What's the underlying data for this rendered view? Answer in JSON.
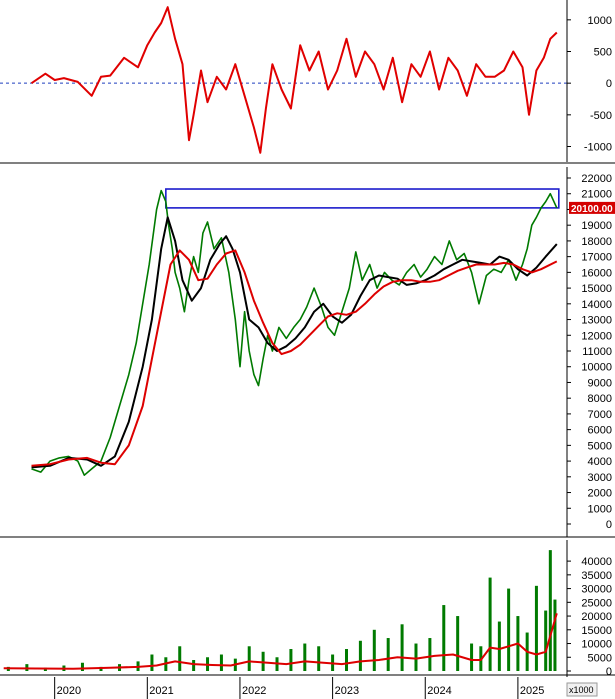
{
  "chart_data": [
    {
      "type": "line",
      "panel": "oscillator",
      "yticks": [
        -1000,
        -500,
        0,
        500,
        1000
      ],
      "ylim": [
        -1150,
        1250
      ],
      "zero_line": {
        "color": "#1f3fbf",
        "style": "dashed"
      },
      "series": [
        {
          "color": "#e00000",
          "x": [
            2019.75,
            2019.9,
            2020.0,
            2020.1,
            2020.25,
            2020.4,
            2020.5,
            2020.6,
            2020.75,
            2020.9,
            2021.0,
            2021.08,
            2021.15,
            2021.22,
            2021.3,
            2021.38,
            2021.45,
            2021.5,
            2021.58,
            2021.65,
            2021.75,
            2021.85,
            2021.95,
            2022.05,
            2022.15,
            2022.22,
            2022.28,
            2022.35,
            2022.45,
            2022.55,
            2022.65,
            2022.75,
            2022.85,
            2022.95,
            2023.05,
            2023.15,
            2023.25,
            2023.35,
            2023.45,
            2023.55,
            2023.65,
            2023.75,
            2023.85,
            2023.95,
            2024.05,
            2024.15,
            2024.25,
            2024.35,
            2024.45,
            2024.55,
            2024.65,
            2024.75,
            2024.85,
            2024.95,
            2025.05,
            2025.12,
            2025.2,
            2025.28,
            2025.35,
            2025.42
          ],
          "y": [
            0,
            150,
            50,
            80,
            20,
            -200,
            100,
            120,
            400,
            250,
            600,
            800,
            950,
            1200,
            700,
            300,
            -900,
            -500,
            200,
            -300,
            100,
            -100,
            300,
            -200,
            -700,
            -1100,
            -400,
            300,
            -100,
            -400,
            600,
            200,
            500,
            -100,
            200,
            700,
            100,
            500,
            300,
            -100,
            400,
            -300,
            300,
            100,
            500,
            -100,
            400,
            200,
            -200,
            300,
            100,
            100,
            200,
            500,
            250,
            -500,
            200,
            400,
            700,
            800
          ]
        }
      ]
    },
    {
      "type": "line",
      "panel": "price",
      "yticks": [
        0,
        1000,
        2000,
        3000,
        4000,
        5000,
        6000,
        7000,
        8000,
        9000,
        10000,
        11000,
        12000,
        13000,
        14000,
        15000,
        16000,
        17000,
        18000,
        19000,
        20000,
        21000,
        22000
      ],
      "ylim": [
        -700,
        22700
      ],
      "last_price": "20100.00",
      "resistance_box": {
        "y_low": 20100,
        "y_high": 21300,
        "x_start": 2021.2,
        "x_end": 2025.42,
        "color": "#1c1ccc"
      },
      "series": [
        {
          "color": "#007a00",
          "x": [
            2019.75,
            2019.85,
            2019.95,
            2020.05,
            2020.15,
            2020.25,
            2020.32,
            2020.4,
            2020.5,
            2020.6,
            2020.7,
            2020.8,
            2020.88,
            2020.95,
            2021.02,
            2021.1,
            2021.15,
            2021.2,
            2021.23,
            2021.27,
            2021.3,
            2021.35,
            2021.4,
            2021.45,
            2021.5,
            2021.55,
            2021.6,
            2021.65,
            2021.72,
            2021.8,
            2021.88,
            2021.95,
            2022.0,
            2022.05,
            2022.1,
            2022.15,
            2022.2,
            2022.25,
            2022.3,
            2022.35,
            2022.42,
            2022.5,
            2022.58,
            2022.65,
            2022.72,
            2022.8,
            2022.88,
            2022.95,
            2023.02,
            2023.1,
            2023.18,
            2023.25,
            2023.32,
            2023.4,
            2023.48,
            2023.56,
            2023.64,
            2023.72,
            2023.8,
            2023.88,
            2023.95,
            2024.02,
            2024.1,
            2024.18,
            2024.26,
            2024.34,
            2024.42,
            2024.5,
            2024.58,
            2024.66,
            2024.74,
            2024.82,
            2024.9,
            2024.98,
            2025.05,
            2025.1,
            2025.15,
            2025.2,
            2025.25,
            2025.3,
            2025.35,
            2025.42
          ],
          "y": [
            3500,
            3300,
            4000,
            4200,
            4300,
            4000,
            3100,
            3500,
            4000,
            5500,
            7500,
            9500,
            11500,
            14000,
            16500,
            20000,
            21200,
            20500,
            19000,
            17500,
            16000,
            15000,
            13500,
            15500,
            17000,
            16000,
            18500,
            19200,
            17500,
            18200,
            16000,
            13000,
            10000,
            13500,
            11000,
            9500,
            8800,
            10500,
            12000,
            11000,
            12500,
            11800,
            12500,
            13000,
            13800,
            15000,
            13800,
            12500,
            12000,
            13500,
            15000,
            17300,
            15500,
            16500,
            15000,
            16000,
            15500,
            15200,
            16000,
            16500,
            15700,
            16200,
            17000,
            16500,
            18000,
            16800,
            17200,
            16000,
            14000,
            15800,
            16200,
            16000,
            16800,
            15500,
            16500,
            17500,
            19000,
            19500,
            20100,
            20500,
            21000,
            20100
          ]
        },
        {
          "color": "#000000",
          "x": [
            2019.75,
            2019.95,
            2020.15,
            2020.35,
            2020.5,
            2020.65,
            2020.8,
            2020.95,
            2021.05,
            2021.15,
            2021.22,
            2021.3,
            2021.38,
            2021.48,
            2021.58,
            2021.68,
            2021.78,
            2021.85,
            2021.92,
            2022.0,
            2022.1,
            2022.2,
            2022.3,
            2022.4,
            2022.5,
            2022.6,
            2022.7,
            2022.8,
            2022.9,
            2023.0,
            2023.1,
            2023.2,
            2023.3,
            2023.4,
            2023.5,
            2023.6,
            2023.7,
            2023.8,
            2023.9,
            2024.0,
            2024.1,
            2024.2,
            2024.3,
            2024.4,
            2024.5,
            2024.6,
            2024.7,
            2024.8,
            2024.9,
            2025.0,
            2025.1,
            2025.2,
            2025.3,
            2025.42
          ],
          "y": [
            3600,
            3700,
            4200,
            4100,
            3700,
            4300,
            6500,
            10000,
            13000,
            17500,
            19500,
            18000,
            15500,
            14200,
            15000,
            16800,
            17800,
            18300,
            17500,
            16000,
            13000,
            12500,
            11500,
            11000,
            11300,
            11800,
            12500,
            13500,
            14000,
            13200,
            12800,
            13300,
            14500,
            15500,
            15800,
            15700,
            15600,
            15200,
            15300,
            15500,
            15800,
            16200,
            16500,
            16800,
            16700,
            16600,
            16500,
            17000,
            16800,
            16200,
            15800,
            16300,
            17000,
            17800
          ]
        },
        {
          "color": "#dd0000",
          "x": [
            2019.75,
            2019.95,
            2020.15,
            2020.35,
            2020.5,
            2020.65,
            2020.8,
            2020.95,
            2021.05,
            2021.15,
            2021.25,
            2021.35,
            2021.45,
            2021.55,
            2021.65,
            2021.75,
            2021.85,
            2021.95,
            2022.05,
            2022.15,
            2022.25,
            2022.35,
            2022.45,
            2022.55,
            2022.65,
            2022.75,
            2022.85,
            2022.95,
            2023.05,
            2023.15,
            2023.25,
            2023.35,
            2023.45,
            2023.55,
            2023.65,
            2023.75,
            2023.85,
            2023.95,
            2024.05,
            2024.15,
            2024.25,
            2024.35,
            2024.45,
            2024.55,
            2024.65,
            2024.75,
            2024.85,
            2024.95,
            2025.05,
            2025.15,
            2025.25,
            2025.42
          ],
          "y": [
            3700,
            3800,
            4100,
            4200,
            3900,
            3800,
            5000,
            7500,
            10500,
            13500,
            16500,
            17400,
            16800,
            15500,
            15600,
            16500,
            17200,
            17400,
            16000,
            14200,
            12800,
            11500,
            10800,
            11000,
            11400,
            12000,
            12600,
            13200,
            13400,
            13300,
            13500,
            14000,
            14600,
            15100,
            15400,
            15500,
            15500,
            15400,
            15400,
            15500,
            15800,
            16100,
            16300,
            16500,
            16500,
            16500,
            16600,
            16500,
            16200,
            16000,
            16200,
            16700
          ]
        }
      ]
    },
    {
      "type": "bar",
      "panel": "volume",
      "ylabel": "x1000",
      "yticks": [
        0,
        5000,
        10000,
        15000,
        20000,
        25000,
        30000,
        35000,
        40000
      ],
      "ylim": [
        0,
        45500
      ],
      "x_tick_labels": [
        "2020",
        "2021",
        "2022",
        "2023",
        "2024",
        "2025"
      ],
      "x_tick_values": [
        2020.0,
        2021.0,
        2022.0,
        2023.0,
        2024.0,
        2025.0
      ],
      "xlim": [
        2019.41,
        2025.53
      ],
      "bar_color": "#007a00",
      "x": [
        2019.5,
        2019.7,
        2019.9,
        2020.1,
        2020.3,
        2020.5,
        2020.7,
        2020.9,
        2021.05,
        2021.2,
        2021.35,
        2021.5,
        2021.65,
        2021.8,
        2021.95,
        2022.1,
        2022.25,
        2022.4,
        2022.55,
        2022.7,
        2022.85,
        2023.0,
        2023.15,
        2023.3,
        2023.45,
        2023.6,
        2023.75,
        2023.9,
        2024.05,
        2024.2,
        2024.35,
        2024.5,
        2024.6,
        2024.7,
        2024.8,
        2024.9,
        2025.0,
        2025.1,
        2025.2,
        2025.3,
        2025.35,
        2025.4
      ],
      "values": [
        1500,
        2500,
        1200,
        2000,
        3000,
        1500,
        2500,
        3500,
        6000,
        5000,
        9000,
        4000,
        5000,
        6000,
        4500,
        9000,
        7000,
        5000,
        8000,
        10000,
        9000,
        6000,
        8000,
        11000,
        15000,
        12000,
        17000,
        10000,
        12000,
        24000,
        20000,
        10000,
        9000,
        34000,
        18000,
        30000,
        20000,
        14000,
        31000,
        22000,
        44000,
        26000
      ],
      "ma": {
        "color": "#dd0000",
        "x": [
          2019.45,
          2019.8,
          2020.2,
          2020.6,
          2020.9,
          2021.1,
          2021.3,
          2021.5,
          2021.7,
          2021.9,
          2022.1,
          2022.3,
          2022.5,
          2022.7,
          2022.9,
          2023.1,
          2023.3,
          2023.5,
          2023.7,
          2023.9,
          2024.1,
          2024.3,
          2024.5,
          2024.6,
          2024.7,
          2024.8,
          2024.9,
          2025.0,
          2025.1,
          2025.2,
          2025.3,
          2025.42
        ],
        "y": [
          1000,
          900,
          800,
          1200,
          1500,
          2000,
          3500,
          2500,
          2200,
          2000,
          3500,
          3000,
          2500,
          3500,
          3000,
          2500,
          3500,
          4000,
          5000,
          4500,
          5500,
          6000,
          4000,
          4000,
          8500,
          8000,
          9000,
          10000,
          7000,
          6000,
          7000,
          21000
        ]
      }
    }
  ]
}
